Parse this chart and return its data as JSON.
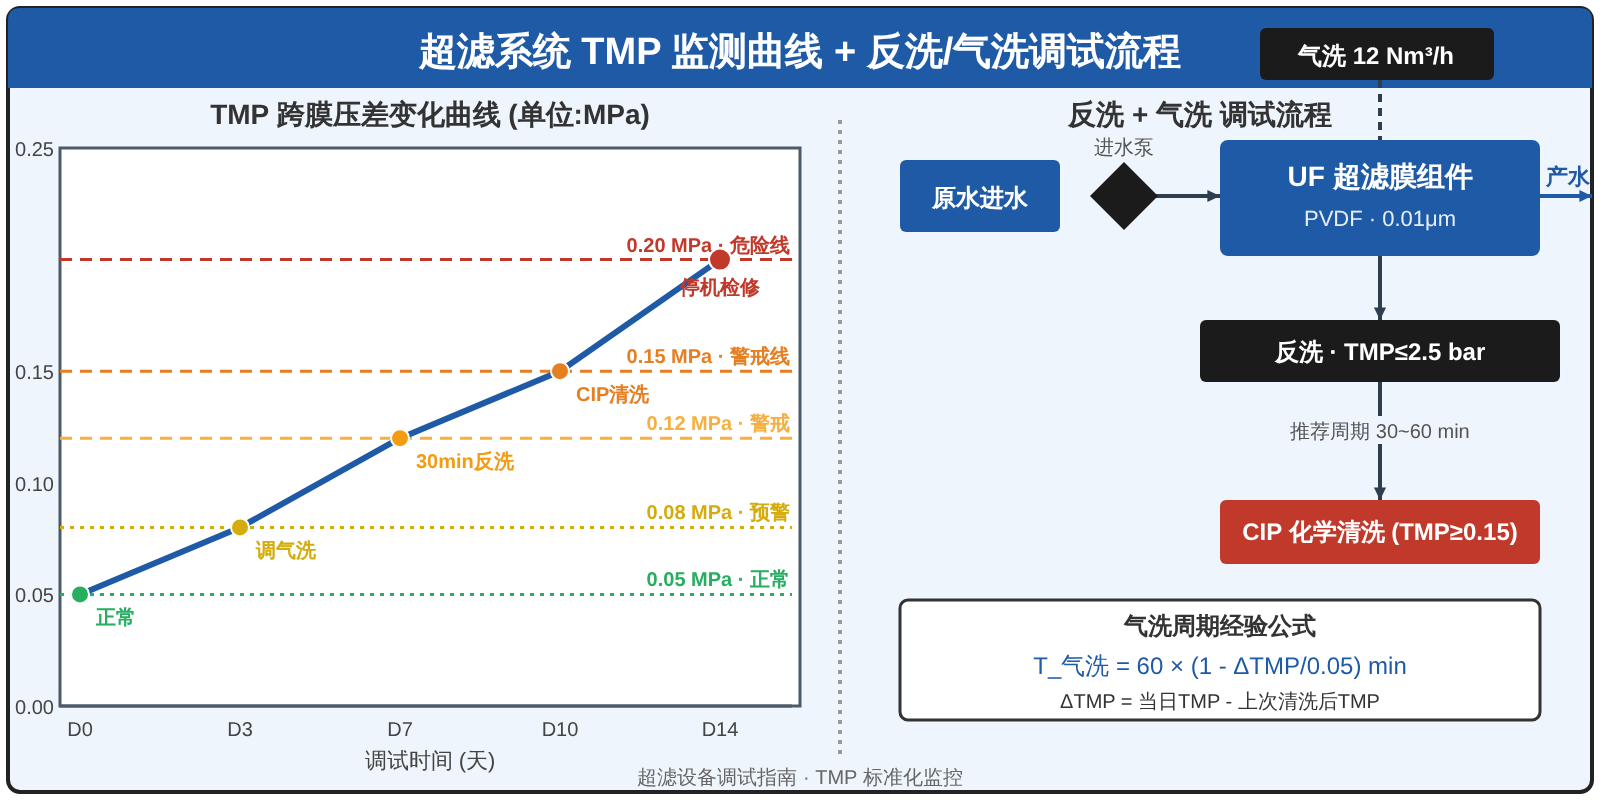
{
  "chart_data": [
    {
      "type": "other",
      "title": "超滤系统 TMP 监测曲线 + 反洗/气洗调试流程",
      "annotations": [
        "气洗 12 Nm³/h",
        "超滤设备调试指南 · TMP 标准化监控"
      ]
    },
    {
      "type": "line",
      "title": "TMP 跨膜压差变化曲线 (单位:MPa)",
      "xlabel": "调试时间 (天)",
      "categories": [
        "D0",
        "D3",
        "D7",
        "D10",
        "D14"
      ],
      "series": [
        {
          "color": "#1f5aa6",
          "colors": [
            "#27ae60",
            "#d4ac0d",
            "#f39c12",
            "#e67e22",
            "#c0392b"
          ],
          "values": [
            0.05,
            0.08,
            0.12,
            0.15,
            0.2
          ]
        }
      ],
      "ylim": [
        0,
        0.25
      ],
      "yticks": [
        {
          "value": 0,
          "label": "0.00"
        },
        {
          "value": 0.05,
          "label": "0.05"
        },
        {
          "value": 0.1,
          "label": "0.10"
        },
        {
          "value": 0.15,
          "label": "0.15"
        },
        {
          "value": 0.25,
          "label": "0.25"
        }
      ],
      "marker": "circle",
      "line_style": "solid",
      "grid": false,
      "ref_lines": [
        {
          "axis": "y",
          "value": 0.2,
          "label": "0.20 MPa · 危险线",
          "color": "#c0392b",
          "line_style": "dashed"
        },
        {
          "axis": "y",
          "value": 0.15,
          "label": "0.15 MPa · 警戒线",
          "color": "#e67e22",
          "line_style": "dashed"
        },
        {
          "axis": "y",
          "value": 0.12,
          "label": "0.12 MPa · 警戒",
          "color": "#f5b041",
          "line_style": "dashed"
        },
        {
          "axis": "y",
          "value": 0.08,
          "label": "0.08 MPa · 预警",
          "color": "#d4ac0d",
          "line_style": "dotted"
        },
        {
          "axis": "y",
          "value": 0.05,
          "label": "0.05 MPa · 正常",
          "color": "#27ae60",
          "line_style": "dotted"
        }
      ],
      "annotations": [
        {
          "text": "正常",
          "x": "D0",
          "y": 0.05
        },
        {
          "text": "调气洗",
          "x": "D3",
          "y": 0.08
        },
        {
          "text": "30min反洗",
          "x": "D7",
          "y": 0.12
        },
        {
          "text": "CIP清洗",
          "x": "D10",
          "y": 0.15
        },
        {
          "text": "停机检修",
          "x": "D14",
          "y": 0.2
        }
      ]
    },
    {
      "type": "other",
      "title": "反洗 + 气洗 调试流程",
      "annotations": [
        "原水进水",
        "进水泵",
        "UF 超滤膜组件",
        "PVDF · 0.01μm",
        "产水",
        "反洗 · TMP≤2.5 bar",
        "推荐周期 30~60 min",
        "CIP 化学清洗 (TMP≥0.15)",
        "气洗周期经验公式",
        "T_气洗 = 60 × (1 - ΔTMP/0.05) min",
        "ΔTMP = 当日TMP - 上次清洗后TMP"
      ]
    }
  ]
}
